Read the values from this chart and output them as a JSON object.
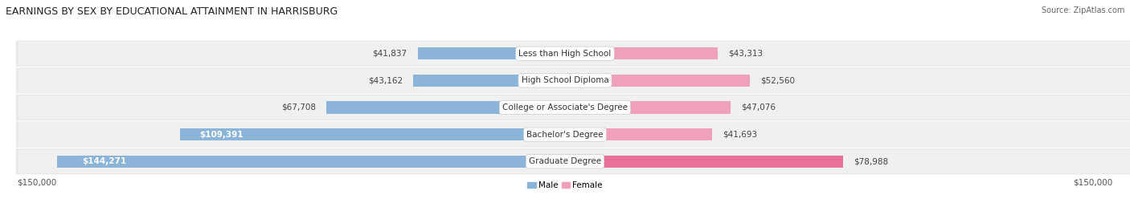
{
  "title": "EARNINGS BY SEX BY EDUCATIONAL ATTAINMENT IN HARRISBURG",
  "source": "Source: ZipAtlas.com",
  "categories": [
    "Less than High School",
    "High School Diploma",
    "College or Associate's Degree",
    "Bachelor's Degree",
    "Graduate Degree"
  ],
  "male_values": [
    41837,
    43162,
    67708,
    109391,
    144271
  ],
  "female_values": [
    43313,
    52560,
    47076,
    41693,
    78988
  ],
  "male_color": "#8ab4d8",
  "female_color": "#f0a0bc",
  "graduate_female_color": "#e8709a",
  "axis_max": 150000,
  "background_color": "#f5f5f5",
  "row_bg_light": "#ebebeb",
  "row_bg_white": "#f8f8f8",
  "title_fontsize": 9,
  "source_fontsize": 7,
  "bar_label_fontsize": 7.5,
  "category_fontsize": 7.5,
  "axis_fontsize": 7.5
}
